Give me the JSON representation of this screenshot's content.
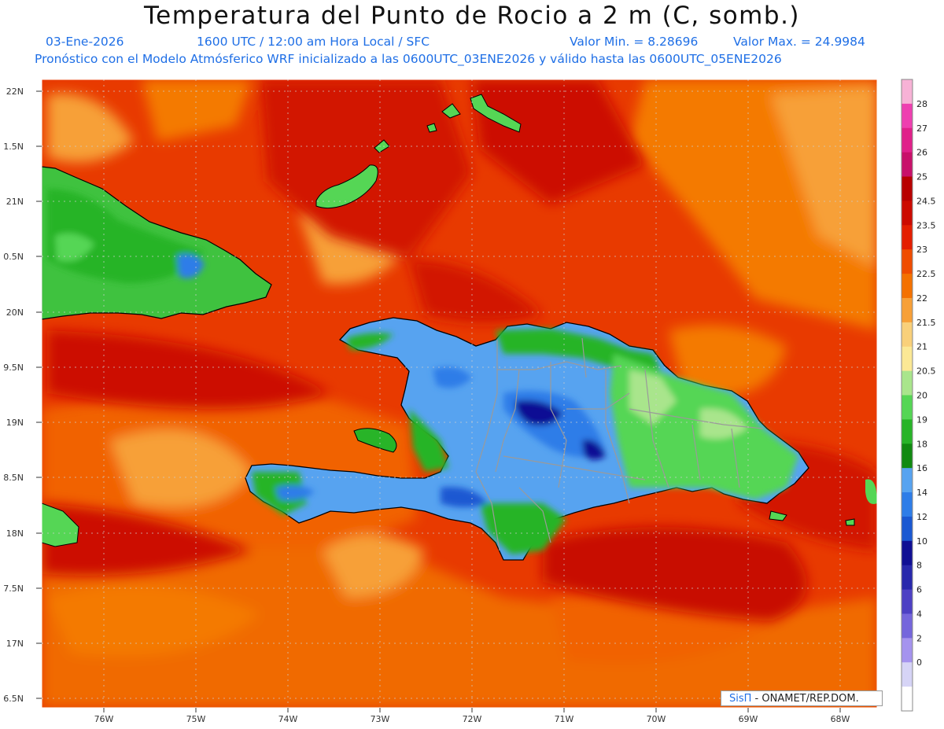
{
  "title": "Temperatura del Punto de Rocio a 2 m (C, somb.)",
  "subtitle": {
    "date": "03-Ene-2026",
    "time": "1600 UTC / 12:00 am Hora Local / SFC",
    "min": "Valor Min. = 8.28696",
    "max": "Valor Max. = 24.9984"
  },
  "info": "Pronóstico con el Modelo Atmósferico WRF inicializado a las 0600UTC_03ENE2026 y válido hasta las  0600UTC_05ENE2026",
  "credit": {
    "brand": "SisΠ",
    "rest": " - ONAMET/REP.DOM."
  },
  "map": {
    "lat_labels": [
      "22N",
      "1.5N",
      "21N",
      "0.5N",
      "20N",
      "9.5N",
      "19N",
      "8.5N",
      "18N",
      "7.5N",
      "17N",
      "6.5N"
    ],
    "lon_labels": [
      "76W",
      "75W",
      "74W",
      "73W",
      "72W",
      "71W",
      "70W",
      "69W",
      "68W"
    ],
    "extent": {
      "lon_min": -76.65,
      "lon_max": -67.6,
      "lat_min": 16.45,
      "lat_max": 22.1
    }
  },
  "colorbar": {
    "labels": [
      "28",
      "27",
      "26",
      "25",
      "24.5",
      "23.5",
      "23",
      "22.5",
      "22",
      "21.5",
      "21",
      "20.5",
      "20",
      "19",
      "18",
      "16",
      "14",
      "12",
      "10",
      "8",
      "6",
      "4",
      "2",
      "0"
    ],
    "colors": [
      "#f7b2d6",
      "#ee3fb0",
      "#e0208a",
      "#c8106a",
      "#b80000",
      "#cc0a00",
      "#e41e00",
      "#ef4c00",
      "#f47100",
      "#f7a037",
      "#f9d07a",
      "#fbe895",
      "#a9e58c",
      "#55d655",
      "#28b428",
      "#118a11",
      "#57a3f0",
      "#2e7de8",
      "#1a58d2",
      "#100f94",
      "#2828ac",
      "#4d40c4",
      "#7566dc",
      "#a593ee",
      "#d6d4f6",
      "#ffffff"
    ]
  }
}
